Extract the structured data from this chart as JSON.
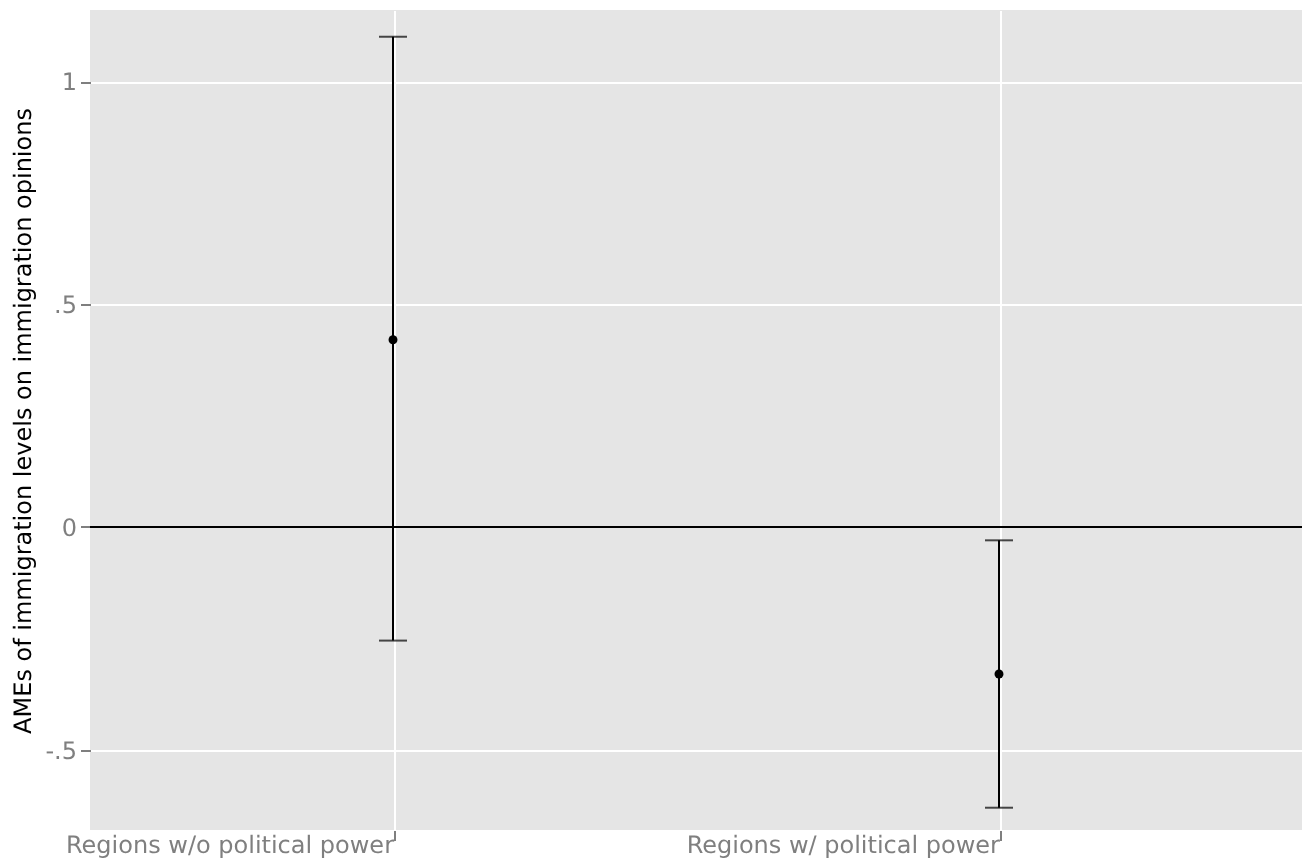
{
  "chart_data": {
    "type": "scatter",
    "ylabel": "AMEs of immigration levels on immigration opinions",
    "categories": [
      "Regions w/o political power",
      "Regions w/ political power"
    ],
    "values": [
      0.42,
      -0.33
    ],
    "errors": [
      [
        -0.255,
        1.1
      ],
      [
        -0.63,
        -0.03
      ]
    ],
    "color": "#000000",
    "marker": "circle",
    "ylim": [
      -0.68,
      1.16
    ],
    "yticks": [
      {
        "value": -0.5,
        "label": "-.5"
      },
      {
        "value": 0,
        "label": "0"
      },
      {
        "value": 0.5,
        "label": ".5"
      },
      {
        "value": 1,
        "label": "1"
      }
    ],
    "ref_lines": [
      {
        "axis": "y",
        "value": 0,
        "color": "#000000"
      }
    ],
    "grid": true
  }
}
